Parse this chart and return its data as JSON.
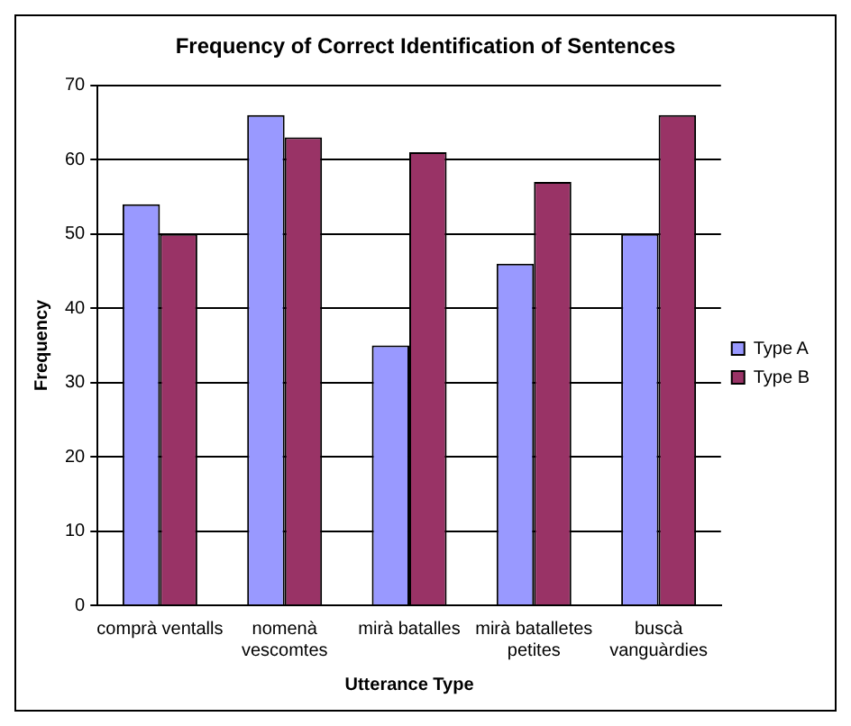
{
  "chart_data": {
    "type": "bar",
    "title": "Frequency of Correct Identification of Sentences",
    "xlabel": "Utterance Type",
    "ylabel": "Frequency",
    "categories": [
      "comprà ventalls",
      "nomenà vescomtes",
      "mirà batalles",
      "mirà batalletes petites",
      "buscà vanguàrdies"
    ],
    "series": [
      {
        "name": "Type A",
        "color": "#9999ff",
        "values": [
          54,
          66,
          35,
          46,
          50
        ]
      },
      {
        "name": "Type B",
        "color": "#993366",
        "values": [
          50,
          63,
          61,
          57,
          66
        ]
      }
    ],
    "ylim": [
      0,
      70
    ],
    "yticks": [
      0,
      10,
      20,
      30,
      40,
      50,
      60,
      70
    ],
    "grid": "y",
    "legend": "right"
  }
}
